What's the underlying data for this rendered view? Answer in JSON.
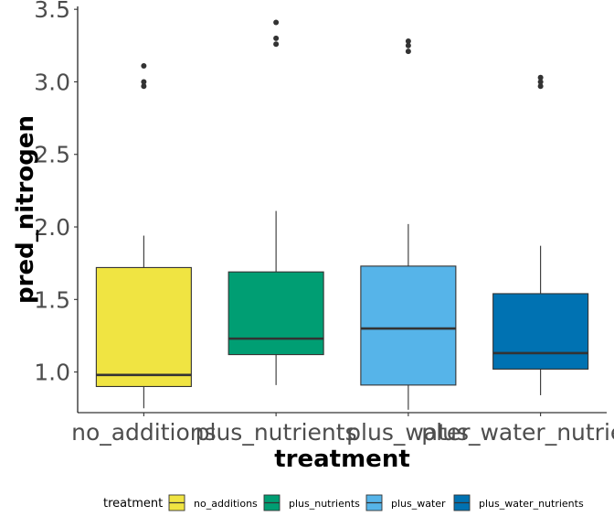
{
  "chart_data": {
    "type": "box",
    "xlabel": "treatment",
    "ylabel": "pred_nitrogen",
    "ylim": [
      0.72,
      3.52
    ],
    "yticks": [
      1.0,
      1.5,
      2.0,
      2.5,
      3.0,
      3.5
    ],
    "ytick_labels": [
      "1.0",
      "1.5",
      "2.0",
      "2.5",
      "3.0",
      "3.5"
    ],
    "categories": [
      "no_additions",
      "plus_nutrients",
      "plus_water",
      "plus_water_nutrients"
    ],
    "grid": false,
    "legend": {
      "title": "treatment",
      "placement": "bottom",
      "entries": [
        "no_additions",
        "plus_nutrients",
        "plus_water",
        "plus_water_nutrients"
      ]
    },
    "series": [
      {
        "category": "no_additions",
        "color": "#F0E442",
        "lower_whisker": 0.75,
        "q1": 0.9,
        "median": 0.98,
        "q3": 1.72,
        "upper_whisker": 1.94,
        "outliers": [
          3.11,
          3.0,
          2.97
        ]
      },
      {
        "category": "plus_nutrients",
        "color": "#009E73",
        "lower_whisker": 0.91,
        "q1": 1.12,
        "median": 1.23,
        "q3": 1.69,
        "upper_whisker": 2.11,
        "outliers": [
          3.41,
          3.3,
          3.26
        ]
      },
      {
        "category": "plus_water",
        "color": "#56B4E9",
        "lower_whisker": 0.74,
        "q1": 0.91,
        "median": 1.3,
        "q3": 1.73,
        "upper_whisker": 2.02,
        "outliers": [
          3.28,
          3.25,
          3.21
        ]
      },
      {
        "category": "plus_water_nutrients",
        "color": "#0072B2",
        "lower_whisker": 0.84,
        "q1": 1.02,
        "median": 1.13,
        "q3": 1.54,
        "upper_whisker": 1.87,
        "outliers": [
          3.03,
          3.0,
          2.97
        ]
      }
    ]
  }
}
